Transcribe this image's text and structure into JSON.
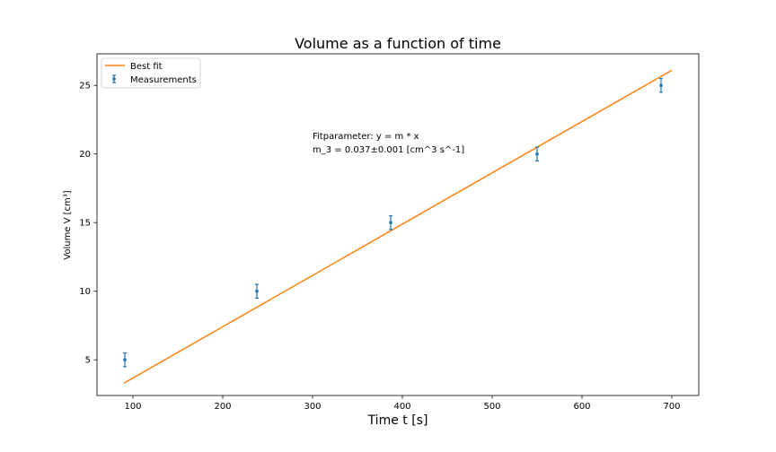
{
  "chart_data": {
    "type": "scatter",
    "title": "Volume as a function of time",
    "xlabel": "Time t [s]",
    "ylabel": "Volume V [cm³]",
    "xlim": [
      60,
      730
    ],
    "ylim": [
      2.4,
      27.3
    ],
    "x_ticks": [
      100,
      200,
      300,
      400,
      500,
      600,
      700
    ],
    "x_tick_labels": [
      "100",
      "200",
      "300",
      "400",
      "500",
      "600",
      "700"
    ],
    "y_ticks": [
      5,
      10,
      15,
      20,
      25
    ],
    "y_tick_labels": [
      "5",
      "10",
      "15",
      "20",
      "25"
    ],
    "grid": false,
    "legend_position": "top-left",
    "series": [
      {
        "name": "Best fit",
        "kind": "line",
        "color": "#ff7f0e",
        "x": [
          90,
          700
        ],
        "y": [
          3.3,
          26.1
        ]
      },
      {
        "name": "Measurements",
        "kind": "errorbar",
        "color": "#1f77b4",
        "x": [
          91,
          238,
          387,
          550,
          688
        ],
        "y": [
          5,
          10,
          15,
          20,
          25
        ],
        "yerr": [
          0.5,
          0.5,
          0.5,
          0.5,
          0.5
        ]
      }
    ],
    "annotations": [
      "Fitparameter: y = m * x",
      "m_3 = 0.037±0.001 [cm^3 s^-1]"
    ]
  }
}
